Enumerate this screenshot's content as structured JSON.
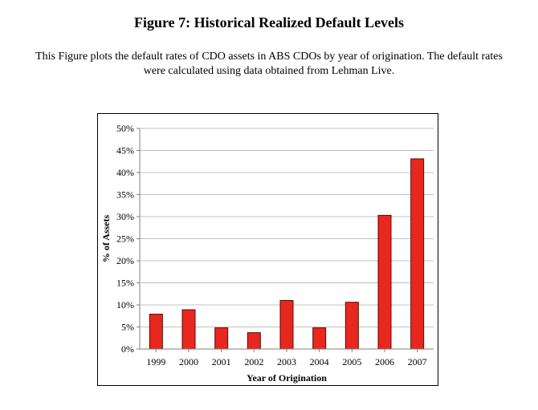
{
  "figure": {
    "title": "Figure 7: Historical Realized Default Levels",
    "caption_line1": "This Figure plots the default rates of CDO assets in ABS CDOs by year of origination. The default rates",
    "caption_line2": "were calculated using data obtained from Lehman Live."
  },
  "chart_data": {
    "type": "bar",
    "title": "",
    "xlabel": "Year of Origination",
    "ylabel": "% of Assets",
    "categories": [
      "1999",
      "2000",
      "2001",
      "2002",
      "2003",
      "2004",
      "2005",
      "2006",
      "2007"
    ],
    "values": [
      7.9,
      8.9,
      4.8,
      3.7,
      11.0,
      4.8,
      10.6,
      30.3,
      43.1
    ],
    "ylim": [
      0,
      50
    ],
    "yticks": [
      0,
      5,
      10,
      15,
      20,
      25,
      30,
      35,
      40,
      45,
      50
    ],
    "ytick_labels": [
      "0%",
      "5%",
      "10%",
      "15%",
      "20%",
      "25%",
      "30%",
      "35%",
      "40%",
      "45%",
      "50%"
    ],
    "grid": true,
    "legend": "none",
    "colors": {
      "bar": "#e8281e",
      "bar_edge": "#5a0a05",
      "grid": "#c0c0c0",
      "axis": "#808080"
    }
  }
}
